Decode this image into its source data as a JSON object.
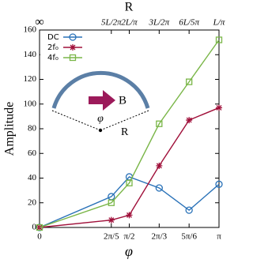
{
  "chart_data": {
    "type": "line",
    "x_label": "φ",
    "y_label": "Amplitude",
    "x2_label": "R",
    "x": [
      0,
      1.2566,
      1.5708,
      2.0944,
      2.618,
      3.1416
    ],
    "xlim": [
      0,
      3.1416
    ],
    "ylim": [
      0,
      160
    ],
    "xticks": [
      {
        "value": 0,
        "label": "0"
      },
      {
        "value": 1.2566,
        "label": "2π/5"
      },
      {
        "value": 1.5708,
        "label": "π/2"
      },
      {
        "value": 2.0944,
        "label": "2π/3"
      },
      {
        "value": 2.618,
        "label": "5π/6"
      },
      {
        "value": 3.1416,
        "label": "π"
      }
    ],
    "x2ticks": [
      {
        "value": 0,
        "label": "∞"
      },
      {
        "value": 1.2566,
        "label": "5L/2π"
      },
      {
        "value": 1.5708,
        "label": "2L/π"
      },
      {
        "value": 2.0944,
        "label": "3L/2π"
      },
      {
        "value": 2.618,
        "label": "6L/5π"
      },
      {
        "value": 3.1416,
        "label": "L/π"
      }
    ],
    "yticks": [
      0,
      20,
      40,
      60,
      80,
      100,
      120,
      140,
      160
    ],
    "legend": "upper left",
    "series": [
      {
        "name": "DC",
        "color": "#2a72b8",
        "marker": "circle",
        "values": [
          0,
          25,
          41,
          32,
          14,
          35
        ]
      },
      {
        "name": "2f₀",
        "color": "#a0103a",
        "marker": "star",
        "values": [
          0,
          6,
          10,
          50,
          87,
          97
        ]
      },
      {
        "name": "4f₀",
        "color": "#7ab648",
        "marker": "square",
        "values": [
          0,
          20,
          36,
          84,
          118,
          152
        ]
      }
    ],
    "annotations": [
      "B",
      "φ",
      "R"
    ]
  }
}
